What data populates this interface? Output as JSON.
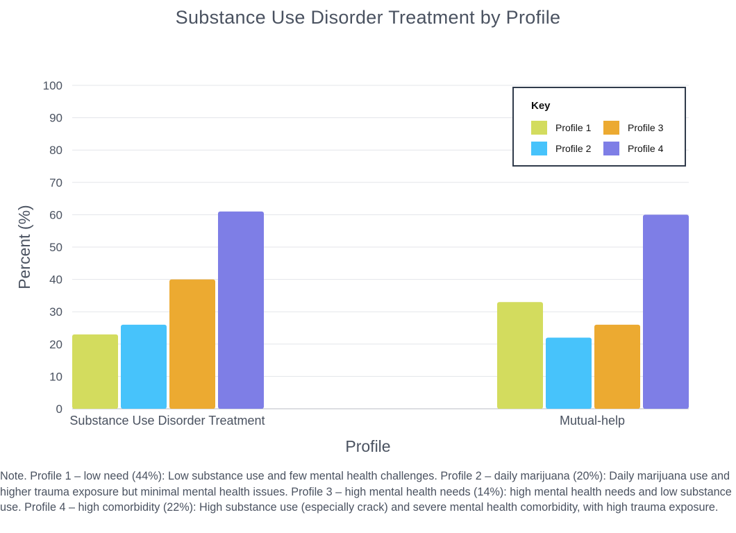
{
  "chart_data": {
    "type": "bar",
    "title": "Substance Use Disorder Treatment by Profile",
    "xlabel": "Profile",
    "ylabel": "Percent (%)",
    "ylim": [
      0,
      100
    ],
    "yticks": [
      0,
      10,
      20,
      30,
      40,
      50,
      60,
      70,
      80,
      90,
      100
    ],
    "grid": true,
    "categories": [
      "Substance Use Disorder Treatment",
      "Mutual-help"
    ],
    "series": [
      {
        "name": "Profile 1",
        "color": "#d3dc5e",
        "values": [
          23,
          33
        ]
      },
      {
        "name": "Profile 2",
        "color": "#47c3fb",
        "values": [
          26,
          22
        ]
      },
      {
        "name": "Profile 3",
        "color": "#ecaa31",
        "values": [
          40,
          26
        ]
      },
      {
        "name": "Profile 4",
        "color": "#7e7ee6",
        "values": [
          61,
          60
        ]
      }
    ],
    "legend": {
      "title": "Key",
      "placement": "top-right"
    }
  },
  "note": "Note. Profile 1 – low need (44%): Low substance use and few mental health challenges. Profile 2 – daily marijuana (20%): Daily marijuana use and higher trauma exposure but minimal mental health issues. Profile 3 – high mental health needs (14%): high mental health needs and low substance use. Profile 4 – high comorbidity (22%): High substance use (especially crack) and severe mental health comorbidity, with high trauma exposure."
}
